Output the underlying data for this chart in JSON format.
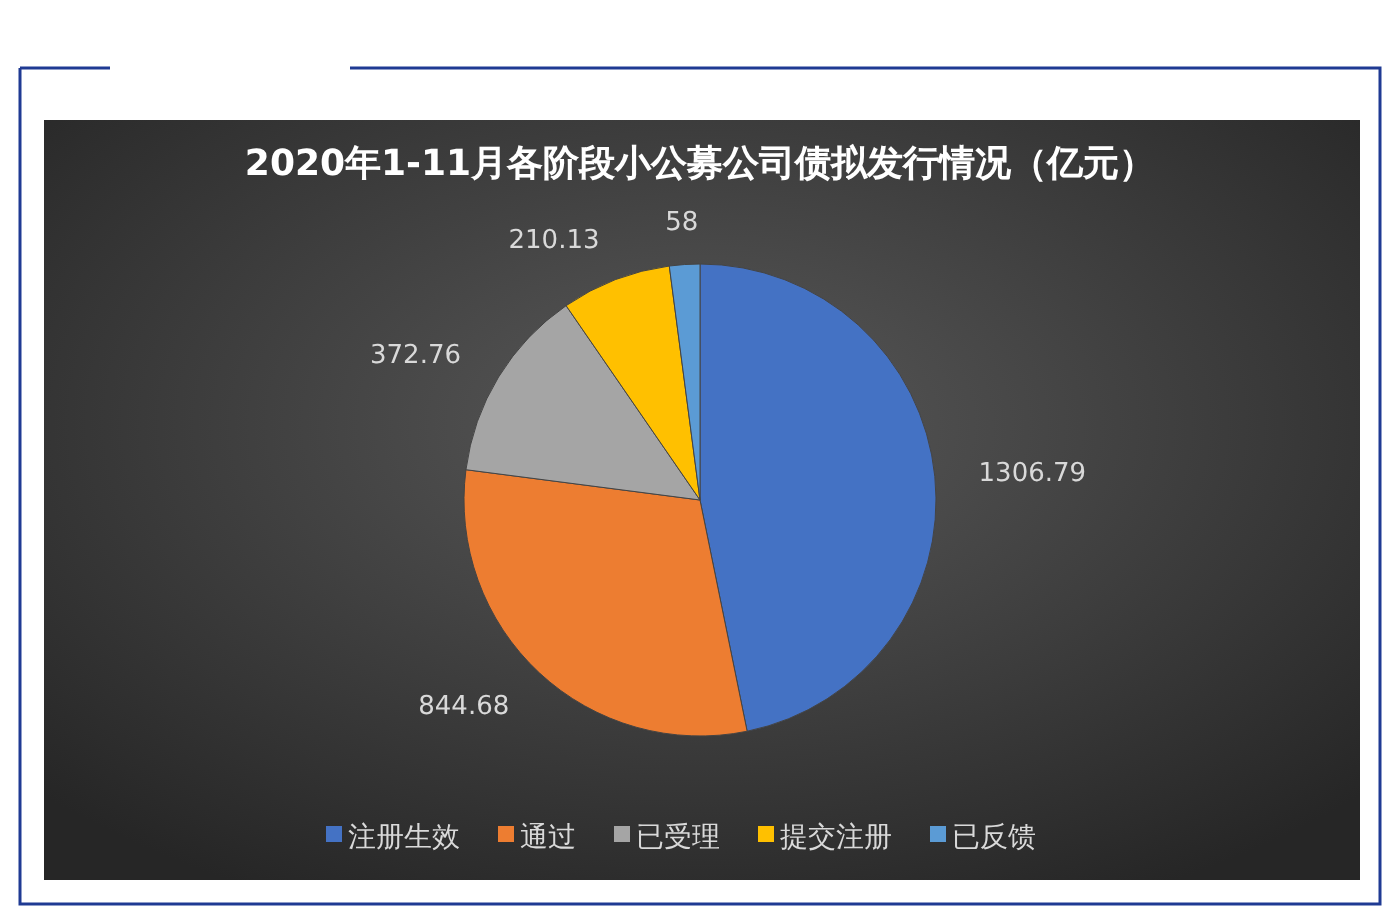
{
  "chart_data": {
    "type": "pie",
    "title": "2020年1-11月各阶段小公募公司债拟发行情况（亿元）",
    "categories": [
      "注册生效",
      "通过",
      "已受理",
      "提交注册",
      "已反馈"
    ],
    "values": [
      1306.79,
      844.68,
      372.76,
      210.13,
      58
    ],
    "colors": [
      "#4472c4",
      "#ed7d31",
      "#a5a5a5",
      "#ffc000",
      "#5b9bd5"
    ],
    "data_labels": true,
    "legend": "bottom"
  }
}
